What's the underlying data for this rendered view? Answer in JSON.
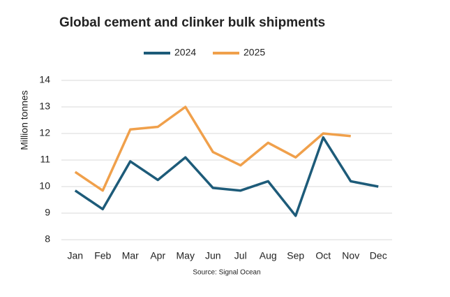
{
  "chart_data": {
    "type": "line",
    "title": "Global cement and clinker bulk shipments",
    "y_label": "Million tonnes",
    "source": "Source: Signal Ocean",
    "categories": [
      "Jan",
      "Feb",
      "Mar",
      "Apr",
      "May",
      "Jun",
      "Jul",
      "Aug",
      "Sep",
      "Oct",
      "Nov",
      "Dec"
    ],
    "series": [
      {
        "name": "2024",
        "color": "#1d5b79",
        "values": [
          9.85,
          9.15,
          10.95,
          10.25,
          11.1,
          9.95,
          9.85,
          10.2,
          8.9,
          11.85,
          10.2,
          10.0
        ]
      },
      {
        "name": "2025",
        "color": "#f0a04b",
        "values": [
          10.55,
          9.85,
          12.15,
          12.25,
          13.0,
          11.3,
          10.8,
          11.65,
          11.1,
          12.0,
          11.9,
          null
        ]
      }
    ],
    "ylim": [
      8,
      14
    ],
    "yticks": [
      8,
      9,
      10,
      11,
      12,
      13,
      14
    ],
    "grid": true,
    "legend": "top"
  }
}
